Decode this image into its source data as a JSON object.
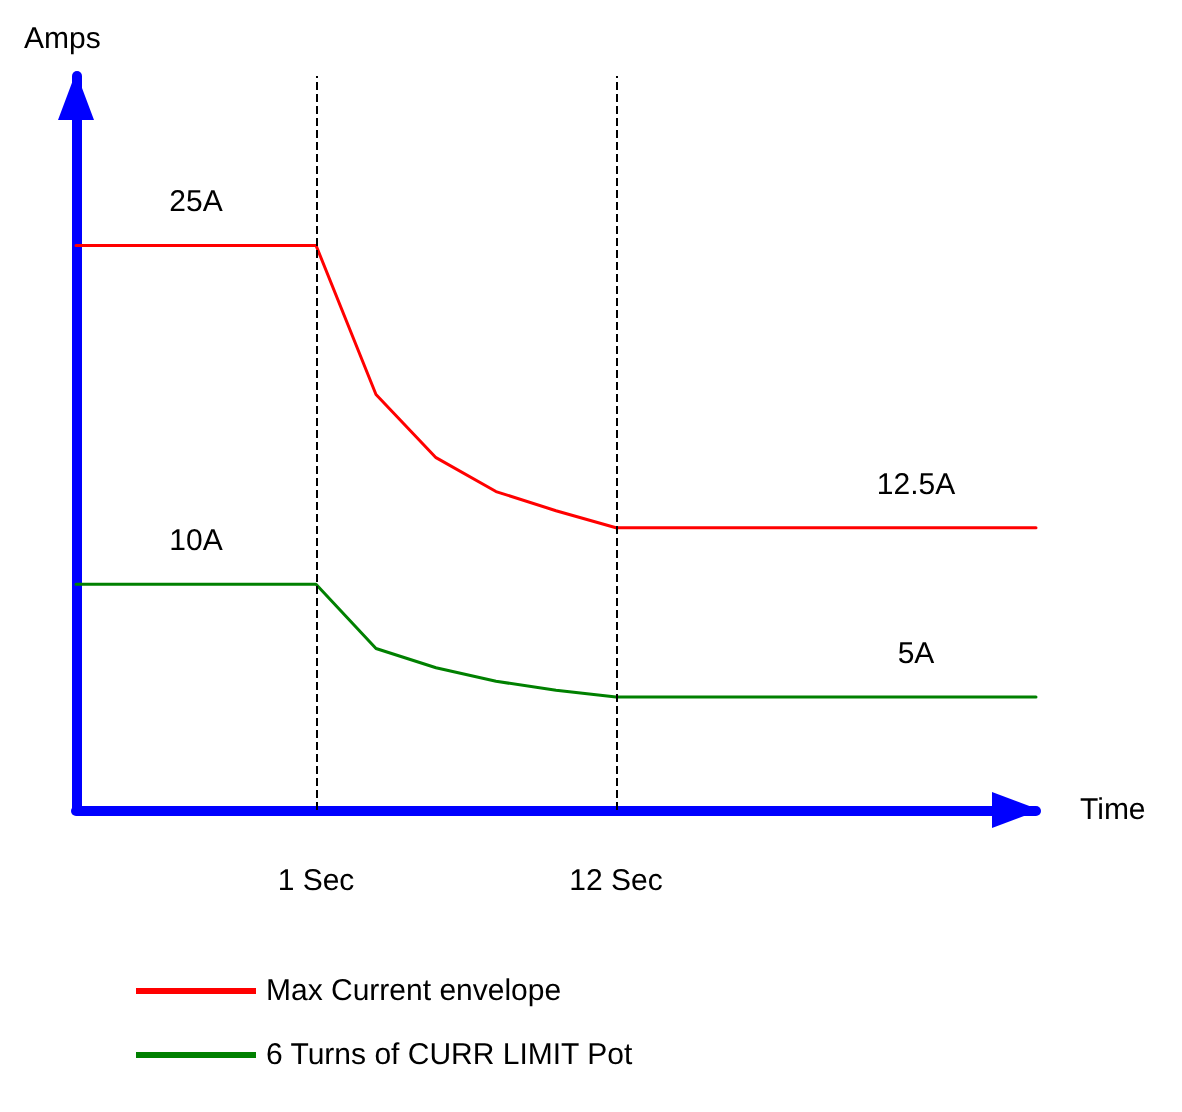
{
  "chart_data": {
    "type": "line",
    "xlabel": "Time",
    "annotations": [
      "Amps"
    ],
    "categories": [
      null,
      null,
      null,
      null,
      "1 Sec",
      null,
      null,
      null,
      null,
      "12 Sec",
      null,
      null,
      null,
      null,
      null,
      null,
      null
    ],
    "series": [
      {
        "name": "Max Current envelope",
        "color": "#ff0000",
        "values": [
          25,
          25,
          25,
          25,
          25,
          18.4,
          15.6,
          14.1,
          13.25,
          12.5,
          12.5,
          12.5,
          12.5,
          12.5,
          12.5,
          12.5,
          12.5
        ],
        "value_labels": [
          null,
          null,
          "25A",
          null,
          null,
          null,
          null,
          null,
          null,
          null,
          null,
          null,
          null,
          null,
          "12.5A",
          null,
          null
        ]
      },
      {
        "name": "6 Turns of CURR LIMIT Pot",
        "color": "#008000",
        "values": [
          10,
          10,
          10,
          10,
          10,
          7.15,
          6.3,
          5.7,
          5.3,
          5,
          5,
          5,
          5,
          5,
          5,
          5,
          5
        ],
        "value_labels": [
          null,
          null,
          "10A",
          null,
          null,
          null,
          null,
          null,
          null,
          null,
          null,
          null,
          null,
          null,
          "5A",
          null,
          null
        ]
      }
    ],
    "ref_lines": [
      {
        "axis": "x",
        "value": "1 Sec",
        "color": "#000000",
        "line_style": "dashed"
      },
      {
        "axis": "x",
        "value": "12 Sec",
        "color": "#000000",
        "line_style": "dashed"
      }
    ],
    "grid": false,
    "legend": "bottom",
    "tick_labels": "x",
    "marker": "none",
    "line_style": "solid"
  }
}
